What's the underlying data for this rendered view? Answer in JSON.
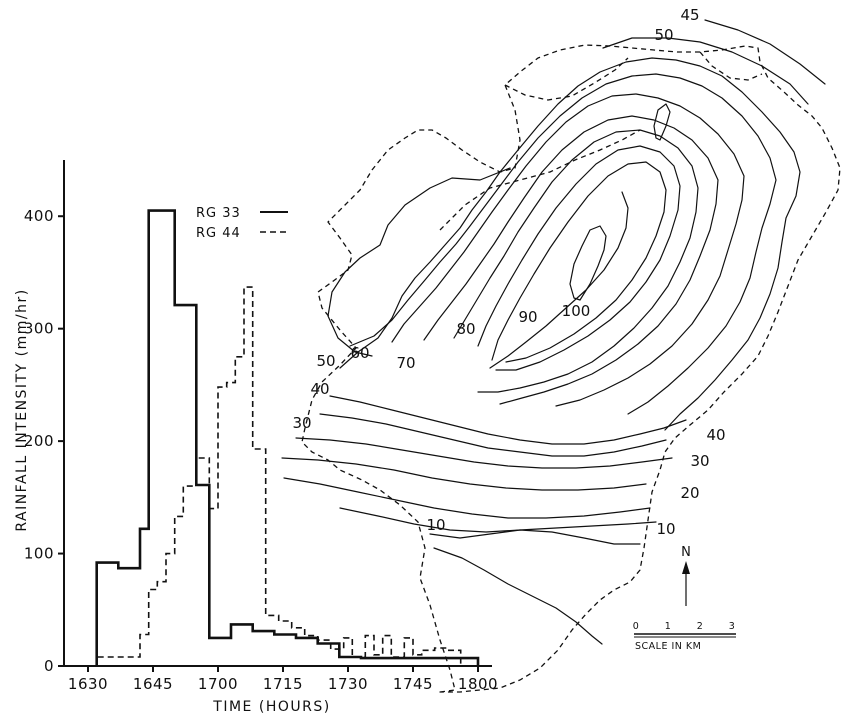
{
  "chart_data": [
    {
      "type": "line",
      "subtype": "step",
      "title": "",
      "xlabel": "TIME (HOURS)",
      "ylabel": "RAINFALL INTENSITY (mm/hr)",
      "xlim": [
        1630,
        1800
      ],
      "ylim": [
        0,
        450
      ],
      "x_tick_labels": [
        "1630",
        "1645",
        "1700",
        "1715",
        "1730",
        "1745",
        "1800"
      ],
      "y_ticks": [
        0,
        100,
        200,
        300,
        400
      ],
      "grid": false,
      "legend_position": "top-center",
      "series": [
        {
          "name": "RG 33",
          "line_style": "solid",
          "bins": [
            {
              "start": "1632",
              "end": "1637",
              "value": 92
            },
            {
              "start": "1637",
              "end": "1642",
              "value": 87
            },
            {
              "start": "1642",
              "end": "1644",
              "value": 122
            },
            {
              "start": "1644",
              "end": "1650",
              "value": 405
            },
            {
              "start": "1650",
              "end": "1655",
              "value": 321
            },
            {
              "start": "1655",
              "end": "1658",
              "value": 161
            },
            {
              "start": "1658",
              "end": "1703",
              "value": 25
            },
            {
              "start": "1703",
              "end": "1708",
              "value": 37
            },
            {
              "start": "1708",
              "end": "1713",
              "value": 31
            },
            {
              "start": "1713",
              "end": "1718",
              "value": 28
            },
            {
              "start": "1718",
              "end": "1723",
              "value": 25
            },
            {
              "start": "1723",
              "end": "1728",
              "value": 20
            },
            {
              "start": "1728",
              "end": "1733",
              "value": 8
            },
            {
              "start": "1733",
              "end": "1800",
              "value": 7
            }
          ]
        },
        {
          "name": "RG 44",
          "line_style": "dashed",
          "bins": [
            {
              "start": "1632",
              "end": "1642",
              "value": 8
            },
            {
              "start": "1642",
              "end": "1644",
              "value": 28
            },
            {
              "start": "1644",
              "end": "1646",
              "value": 68
            },
            {
              "start": "1646",
              "end": "1648",
              "value": 75
            },
            {
              "start": "1648",
              "end": "1650",
              "value": 100
            },
            {
              "start": "1650",
              "end": "1652",
              "value": 133
            },
            {
              "start": "1652",
              "end": "1655",
              "value": 160
            },
            {
              "start": "1655",
              "end": "1658",
              "value": 185
            },
            {
              "start": "1658",
              "end": "1700",
              "value": 140
            },
            {
              "start": "1700",
              "end": "1702",
              "value": 248
            },
            {
              "start": "1702",
              "end": "1704",
              "value": 252
            },
            {
              "start": "1704",
              "end": "1706",
              "value": 275
            },
            {
              "start": "1706",
              "end": "1708",
              "value": 337
            },
            {
              "start": "1708",
              "end": "1711",
              "value": 193
            },
            {
              "start": "1711",
              "end": "1714",
              "value": 45
            },
            {
              "start": "1714",
              "end": "1717",
              "value": 40
            },
            {
              "start": "1717",
              "end": "1720",
              "value": 34
            },
            {
              "start": "1720",
              "end": "1723",
              "value": 27
            },
            {
              "start": "1723",
              "end": "1726",
              "value": 23
            },
            {
              "start": "1726",
              "end": "1729",
              "value": 15
            },
            {
              "start": "1729",
              "end": "1731",
              "value": 25
            },
            {
              "start": "1731",
              "end": "1734",
              "value": 8
            },
            {
              "start": "1734",
              "end": "1736",
              "value": 27
            },
            {
              "start": "1736",
              "end": "1738",
              "value": 10
            },
            {
              "start": "1738",
              "end": "1740",
              "value": 27
            },
            {
              "start": "1740",
              "end": "1743",
              "value": 8
            },
            {
              "start": "1743",
              "end": "1745",
              "value": 25
            },
            {
              "start": "1745",
              "end": "1747",
              "value": 10
            },
            {
              "start": "1747",
              "end": "1750",
              "value": 14
            },
            {
              "start": "1750",
              "end": "1753",
              "value": 16
            },
            {
              "start": "1753",
              "end": "1756",
              "value": 14
            }
          ]
        }
      ]
    },
    {
      "type": "contour-map",
      "title": "",
      "contour_labels": [
        "10",
        "10",
        "20",
        "30",
        "30",
        "40",
        "40",
        "45",
        "50",
        "50",
        "60",
        "70",
        "80",
        "90",
        "100"
      ],
      "north_label": "N",
      "scale_ticks": [
        "0",
        "1",
        "2",
        "3"
      ],
      "scale_label": "SCALE IN KM"
    }
  ]
}
